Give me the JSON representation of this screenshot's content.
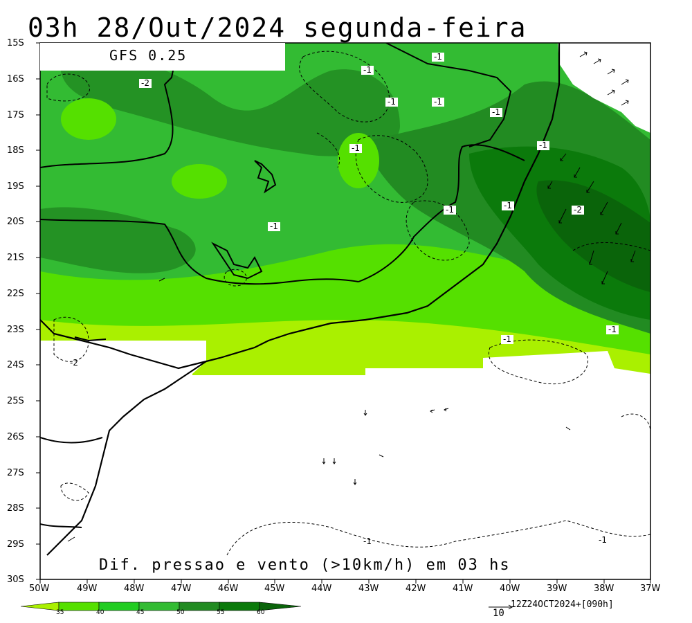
{
  "title": "03h 28/Out/2024 segunda-feira",
  "model": "GFS 0.25",
  "subtitle": "Dif. pressao e vento (>10km/h) em 03 hs",
  "run_info": "12Z24OCT2024+[090h]",
  "vector_ref": "10",
  "lat_labels": [
    "15S",
    "16S",
    "17S",
    "18S",
    "19S",
    "20S",
    "21S",
    "22S",
    "23S",
    "24S",
    "25S",
    "26S",
    "27S",
    "28S",
    "29S",
    "30S"
  ],
  "lon_labels": [
    "50W",
    "49W",
    "48W",
    "47W",
    "46W",
    "45W",
    "44W",
    "43W",
    "42W",
    "41W",
    "40W",
    "39W",
    "38W",
    "37W"
  ],
  "colorbar": {
    "levels": [
      "35",
      "40",
      "45",
      "50",
      "55",
      "60"
    ],
    "colors": [
      "#aaf000",
      "#55e000",
      "#22cc22",
      "#33bb33",
      "#228b22",
      "#0b7a0b",
      "#0a640a"
    ]
  },
  "contour_labels": [
    {
      "text": "-1",
      "name": "contour-label-top-1"
    },
    {
      "text": "-1",
      "name": "contour-label-top-2"
    },
    {
      "text": "-2",
      "name": "contour-label-nw"
    },
    {
      "text": "-1",
      "name": "contour-label-n1"
    },
    {
      "text": "-1",
      "name": "contour-label-n2"
    },
    {
      "text": "-1",
      "name": "contour-label-ne1"
    },
    {
      "text": "-1",
      "name": "contour-label-c1"
    },
    {
      "text": "-1",
      "name": "contour-label-e1"
    },
    {
      "text": "-1",
      "name": "contour-label-e2"
    },
    {
      "text": "-1",
      "name": "contour-label-e3"
    },
    {
      "text": "-2",
      "name": "contour-label-e4"
    },
    {
      "text": "-1",
      "name": "contour-label-c2"
    },
    {
      "text": "-1",
      "name": "contour-label-se1"
    },
    {
      "text": "-1",
      "name": "contour-label-se2"
    },
    {
      "text": "-2",
      "name": "contour-label-sw"
    },
    {
      "text": "-1",
      "name": "contour-label-s1"
    },
    {
      "text": "-1",
      "name": "contour-label-s2"
    }
  ]
}
